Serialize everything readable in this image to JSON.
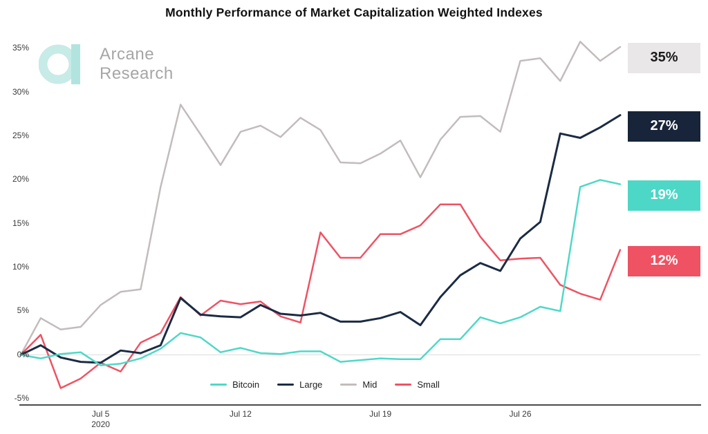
{
  "title": "Monthly Performance of Market Capitalization Weighted Indexes",
  "logo": {
    "line1": "Arcane",
    "line2": "Research"
  },
  "chart_data": {
    "type": "line",
    "title": "Monthly Performance of Market Capitalization Weighted Indexes",
    "xlabel": "",
    "ylabel": "",
    "x_unit": "Day of July 2020",
    "x": [
      1,
      2,
      3,
      4,
      5,
      6,
      7,
      8,
      9,
      10,
      11,
      12,
      13,
      14,
      15,
      16,
      17,
      18,
      19,
      20,
      21,
      22,
      23,
      24,
      25,
      26,
      27,
      28,
      29,
      30,
      31
    ],
    "x_tick_labels": [
      {
        "label": "Jul 5",
        "sublabel": "2020",
        "day": 5
      },
      {
        "label": "Jul 12",
        "sublabel": "",
        "day": 12
      },
      {
        "label": "Jul 19",
        "sublabel": "",
        "day": 19
      },
      {
        "label": "Jul 26",
        "sublabel": "",
        "day": 26
      }
    ],
    "y_ticks": [
      {
        "label": "35%",
        "value": 35
      },
      {
        "label": "30%",
        "value": 30
      },
      {
        "label": "25%",
        "value": 25
      },
      {
        "label": "20%",
        "value": 20
      },
      {
        "label": "15%",
        "value": 15
      },
      {
        "label": "10%",
        "value": 10
      },
      {
        "label": "5%",
        "value": 5
      },
      {
        "label": "0%",
        "value": 0
      },
      {
        "label": "-5%",
        "value": -5
      }
    ],
    "ylim": [
      -5,
      35
    ],
    "grid": "horizontal line at 0% only",
    "legend_position": "bottom-center",
    "series": [
      {
        "name": "Bitcoin",
        "color": "#4FD8C7",
        "end_label": "19%",
        "end_label_bg": "#4DD7C6",
        "end_label_fg": "#FFFFFF",
        "values": [
          0,
          -0.4,
          0.1,
          0.3,
          -1.2,
          -1.0,
          -0.4,
          0.7,
          2.5,
          2.0,
          0.3,
          0.8,
          0.2,
          0.1,
          0.4,
          0.4,
          -0.8,
          -0.6,
          -0.4,
          -0.5,
          -0.5,
          1.8,
          1.8,
          4.3,
          3.6,
          4.3,
          5.5,
          5.0,
          19.2,
          20.0,
          19.5
        ]
      },
      {
        "name": "Large",
        "color": "#1B2B44",
        "end_label": "27%",
        "end_label_bg": "#172439",
        "end_label_fg": "#FFFFFF",
        "values": [
          0,
          1.1,
          -0.3,
          -0.8,
          -0.9,
          0.5,
          0.2,
          1.1,
          6.5,
          4.6,
          4.4,
          4.3,
          5.7,
          4.7,
          4.5,
          4.8,
          3.8,
          3.8,
          4.2,
          4.9,
          3.4,
          6.6,
          9.1,
          10.5,
          9.6,
          13.3,
          15.2,
          25.3,
          24.8,
          26.0,
          27.4
        ]
      },
      {
        "name": "Mid",
        "color": "#C3BCBC",
        "end_label": "35%",
        "end_label_bg": "#E9E7E7",
        "end_label_fg": "#1A1A1A",
        "values": [
          0,
          4.2,
          2.9,
          3.2,
          5.7,
          7.2,
          7.5,
          19.2,
          28.6,
          25.2,
          21.7,
          25.5,
          26.2,
          24.9,
          27.1,
          25.7,
          22.0,
          21.9,
          23.0,
          24.5,
          20.3,
          24.6,
          27.2,
          27.3,
          25.5,
          33.6,
          33.9,
          31.3,
          35.8,
          33.6,
          35.2
        ]
      },
      {
        "name": "Small",
        "color": "#EF5263",
        "end_label": "12%",
        "end_label_bg": "#EF5263",
        "end_label_fg": "#FFFFFF",
        "values": [
          0,
          2.3,
          -3.8,
          -2.7,
          -0.9,
          -1.9,
          1.4,
          2.5,
          6.6,
          4.5,
          6.2,
          5.8,
          6.1,
          4.4,
          3.7,
          14.0,
          11.1,
          11.1,
          13.8,
          13.8,
          14.8,
          17.2,
          17.2,
          13.5,
          10.8,
          11.0,
          11.1,
          8.0,
          7.0,
          6.3,
          12.0
        ]
      }
    ]
  }
}
